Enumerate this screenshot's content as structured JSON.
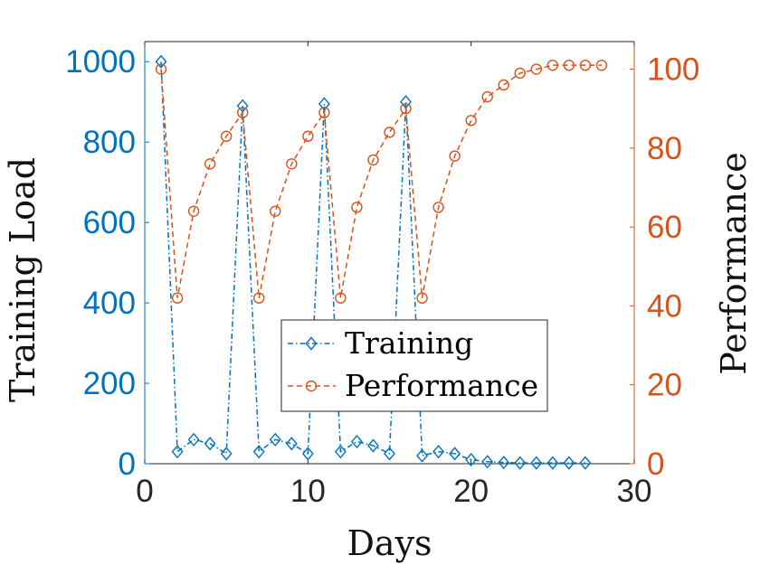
{
  "colors": {
    "left_axis": "#0072BD",
    "right_axis": "#D95319",
    "axis_black": "#262626",
    "background": "#ffffff"
  },
  "chart_data": {
    "type": "line",
    "title": "",
    "xlabel": "Days",
    "ylabel_left": "Training Load",
    "ylabel_right": "Performance",
    "xlim": [
      0,
      30
    ],
    "ylim_left": [
      0,
      1050
    ],
    "ylim_right": [
      0,
      107
    ],
    "x_ticks": [
      0,
      10,
      20,
      30
    ],
    "y_ticks_left": [
      0,
      200,
      400,
      600,
      800,
      1000
    ],
    "y_ticks_right": [
      0,
      20,
      40,
      60,
      80,
      100
    ],
    "legend_position": "lower-center",
    "grid": false,
    "series": [
      {
        "name": "Training",
        "axis": "left",
        "color": "#0072BD",
        "line_style": "dash-dot",
        "marker": "diamond",
        "x": [
          1,
          2,
          3,
          4,
          5,
          6,
          7,
          8,
          9,
          10,
          11,
          12,
          13,
          14,
          15,
          16,
          17,
          18,
          19,
          20,
          21,
          22,
          23,
          24,
          25,
          26,
          27
        ],
        "values": [
          1000,
          30,
          60,
          50,
          25,
          890,
          30,
          60,
          50,
          25,
          895,
          30,
          55,
          45,
          25,
          900,
          20,
          30,
          25,
          10,
          5,
          3,
          2,
          2,
          2,
          2,
          2
        ]
      },
      {
        "name": "Performance",
        "axis": "right",
        "color": "#D95319",
        "line_style": "dashed",
        "marker": "circle",
        "x": [
          1,
          2,
          3,
          4,
          5,
          6,
          7,
          8,
          9,
          10,
          11,
          12,
          13,
          14,
          15,
          16,
          17,
          18,
          19,
          20,
          21,
          22,
          23,
          24,
          25,
          26,
          27,
          28
        ],
        "values": [
          100,
          42,
          64,
          76,
          83,
          89,
          42,
          64,
          76,
          83,
          89,
          42,
          65,
          77,
          84,
          90,
          42,
          65,
          78,
          87,
          93,
          96,
          99,
          100,
          101,
          101,
          101,
          101
        ]
      }
    ]
  }
}
